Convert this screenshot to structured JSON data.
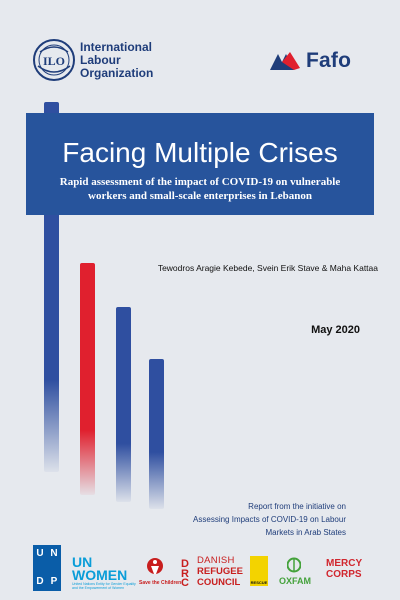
{
  "header": {
    "ilo_name": [
      "International",
      "Labour",
      "Organization"
    ],
    "ilo_emblem_icon": "ilo-emblem-icon",
    "fafo_name": "Fafo",
    "fafo_mark_icon": "fafo-mark-icon"
  },
  "cover": {
    "title": "Facing Multiple Crises",
    "subtitle_lines": [
      "Rapid assessment of the impact of COVID-19 on vulnerable",
      "workers and small-scale enterprises in Lebanon"
    ],
    "authors": "Tewodros Aragie Kebede, Svein Erik Stave & Maha Kattaa",
    "date": "May 2020",
    "report_lines": [
      "Report from the initiative on",
      "Assessing Impacts of COVID-19 on Labour",
      "Markets in Arab States"
    ]
  },
  "colors": {
    "band_blue": "#27549c",
    "bar_blue": "#2f4fa0",
    "bar_red": "#e0202e",
    "background": "#e6e9ee",
    "ilo_blue": "#1f3d7a"
  },
  "footer": {
    "undp_letters": [
      "U",
      "N",
      "D",
      "P"
    ],
    "unwomen": [
      "UN",
      "WOMEN"
    ],
    "unwomen_sub": "United Nations Entity for Gender Equality and the Empowerment of Women",
    "save_the_children": "Save the Children",
    "drc": [
      "DRC",
      "DANISH",
      "REFUGEE",
      "COUNCIL"
    ],
    "drc_letters": "DRC",
    "drc_lines": [
      "DANISH",
      "REFUGEE",
      "COUNCIL"
    ],
    "rescue": "RESCUE",
    "oxfam": "OXFAM",
    "mercy_corps": [
      "MERCY",
      "CORPS"
    ]
  }
}
